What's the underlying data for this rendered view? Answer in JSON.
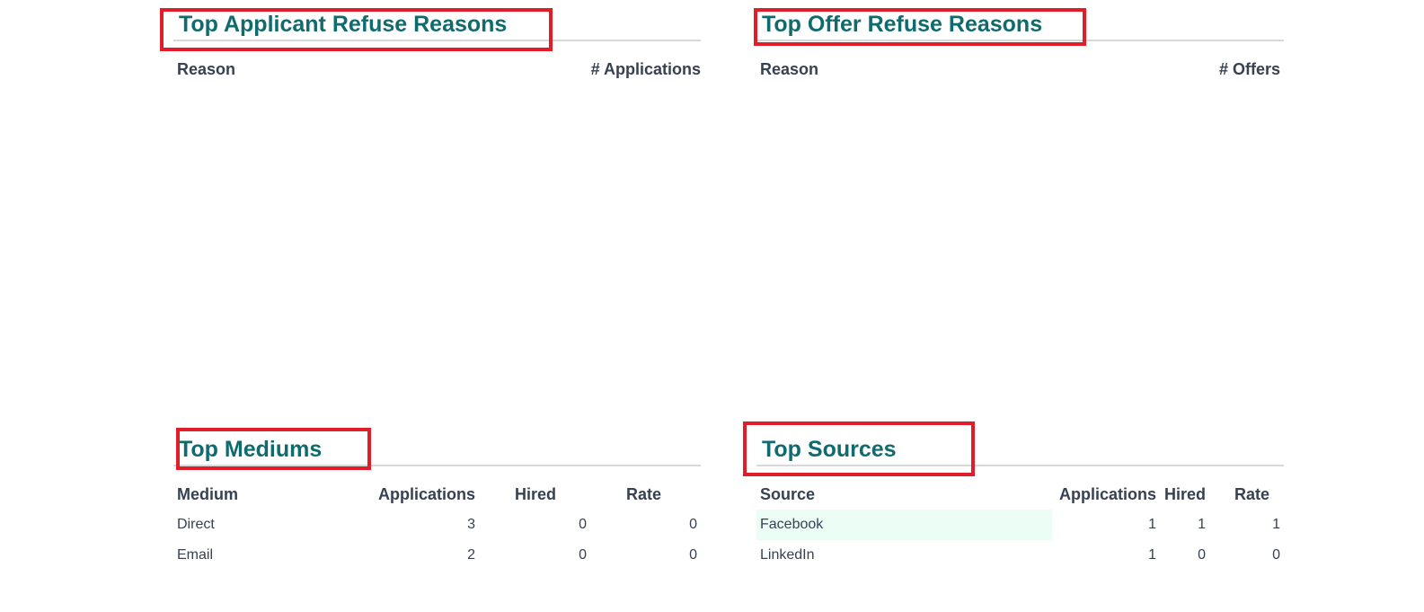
{
  "applicant_refuse": {
    "title": "Top Applicant Refuse Reasons",
    "columns": [
      "Reason",
      "# Applications"
    ]
  },
  "offer_refuse": {
    "title": "Top Offer Refuse Reasons",
    "columns": [
      "Reason",
      "# Offers"
    ]
  },
  "mediums": {
    "title": "Top Mediums",
    "columns": [
      "Medium",
      "Applications",
      "Hired",
      "Rate"
    ],
    "rows": [
      {
        "name": "Direct",
        "applications": "3",
        "hired": "0",
        "rate": "0"
      },
      {
        "name": "Email",
        "applications": "2",
        "hired": "0",
        "rate": "0"
      }
    ]
  },
  "sources": {
    "title": "Top Sources",
    "columns": [
      "Source",
      "Applications",
      "Hired",
      "Rate"
    ],
    "rows": [
      {
        "name": "Facebook",
        "applications": "1",
        "hired": "1",
        "rate": "1"
      },
      {
        "name": "LinkedIn",
        "applications": "1",
        "hired": "0",
        "rate": "0"
      }
    ]
  },
  "colors": {
    "title": "#0f6b6d",
    "highlight": "#e11d2a",
    "row_highlight": "#ecfdf5"
  }
}
